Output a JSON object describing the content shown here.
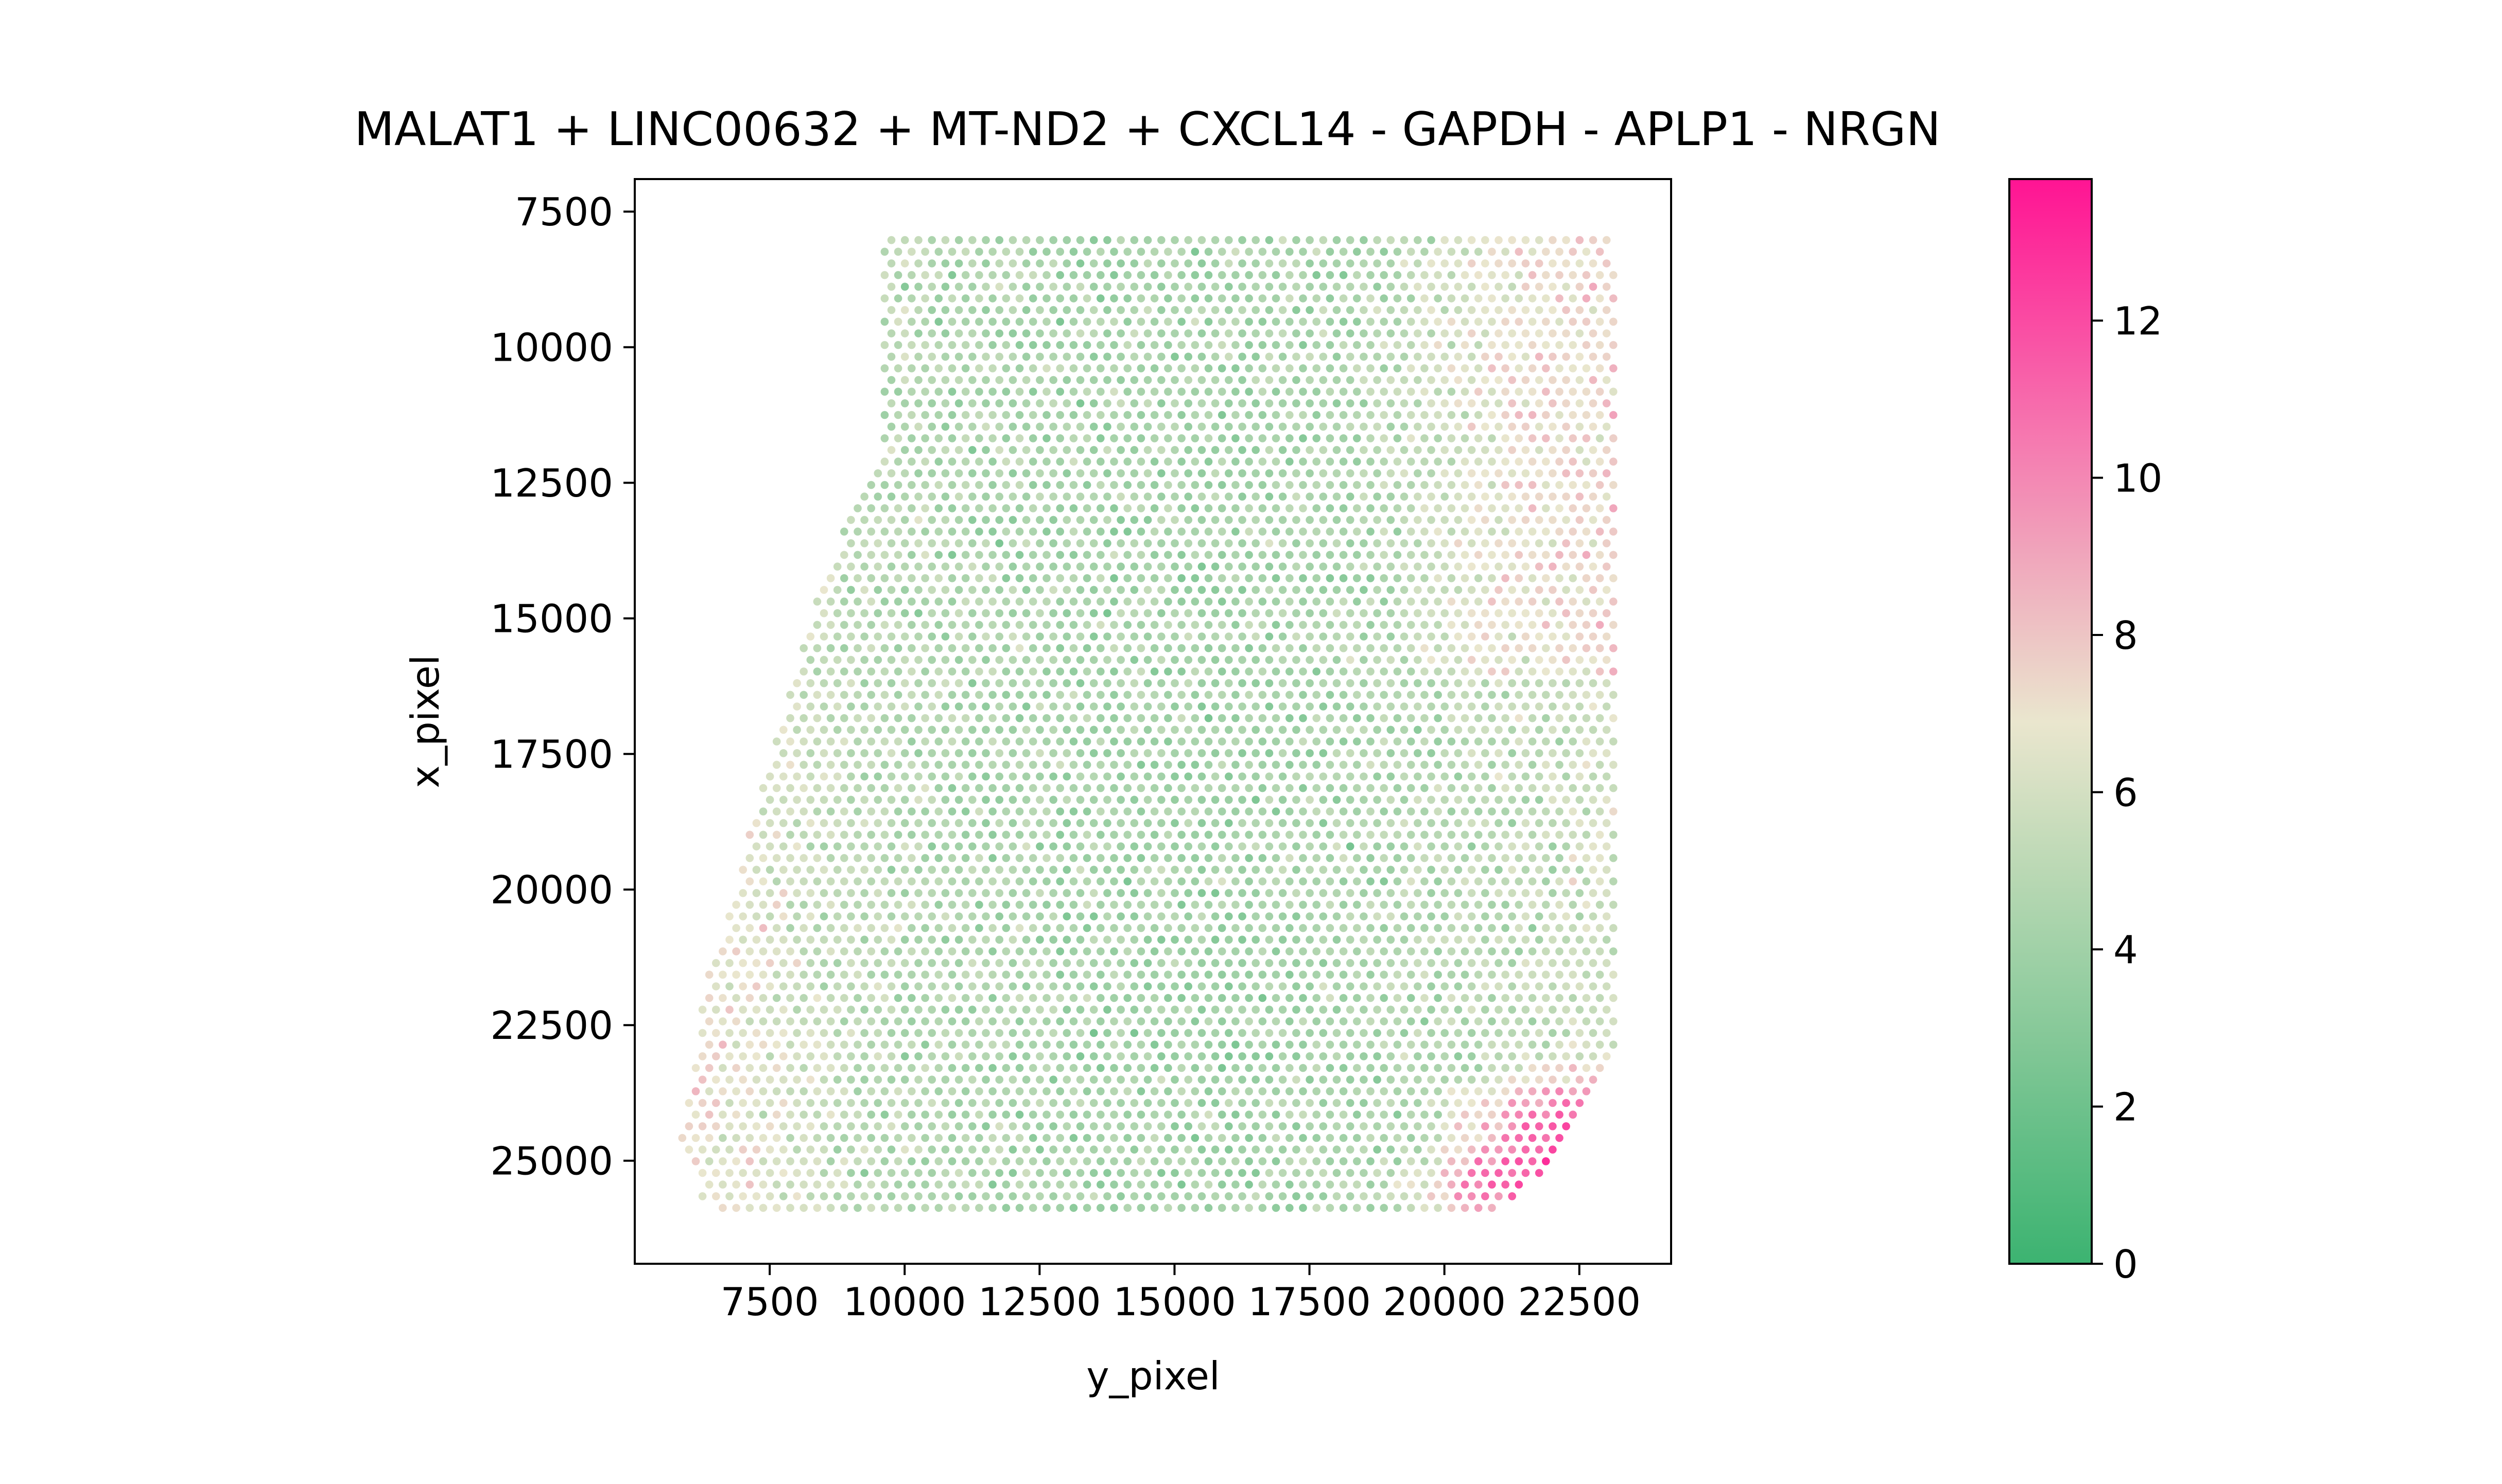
{
  "chart_data": {
    "type": "scatter",
    "title": "MALAT1 + LINC00632 + MT-ND2 + CXCL14 - GAPDH - APLP1 - NRGN",
    "xlabel": "y_pixel",
    "ylabel": "x_pixel",
    "xlim": [
      5000,
      24200
    ],
    "ylim": [
      26900,
      6900
    ],
    "x_ticks": [
      7500,
      10000,
      12500,
      15000,
      17500,
      20000,
      22500
    ],
    "x_tick_labels": [
      "7500",
      "10000",
      "12500",
      "15000",
      "17500",
      "20000",
      "22500"
    ],
    "y_ticks": [
      7500,
      10000,
      12500,
      15000,
      17500,
      20000,
      22500,
      25000
    ],
    "y_tick_labels": [
      "7500",
      "10000",
      "12500",
      "15000",
      "17500",
      "20000",
      "22500",
      "25000"
    ],
    "grid": false,
    "legend": "none",
    "colorbar": {
      "range": [
        0,
        13.8
      ],
      "ticks": [
        0,
        2,
        4,
        6,
        8,
        10,
        12
      ],
      "tick_labels": [
        "0",
        "2",
        "4",
        "6",
        "8",
        "10",
        "12"
      ],
      "colors": [
        "#3cb371",
        "#eae6ce",
        "#ff1493"
      ],
      "center": 6.9
    },
    "spot_grid": {
      "x_start": 5880,
      "x_step": 250,
      "row_start": 7810,
      "row_step": 215,
      "rows": 85
    },
    "tissue_outline": [
      [
        9600,
        7850
      ],
      [
        23000,
        7900
      ],
      [
        23150,
        8400
      ],
      [
        23150,
        21500
      ],
      [
        23250,
        22600
      ],
      [
        22800,
        23700
      ],
      [
        22000,
        25100
      ],
      [
        21000,
        25900
      ],
      [
        19800,
        26200
      ],
      [
        7000,
        26200
      ],
      [
        6300,
        25800
      ],
      [
        5850,
        24700
      ],
      [
        6300,
        21800
      ],
      [
        6900,
        20000
      ],
      [
        7300,
        18200
      ],
      [
        7800,
        16500
      ],
      [
        8400,
        14400
      ],
      [
        9200,
        12700
      ],
      [
        9600,
        11700
      ],
      [
        9600,
        10700
      ],
      [
        9600,
        8900
      ]
    ]
  }
}
